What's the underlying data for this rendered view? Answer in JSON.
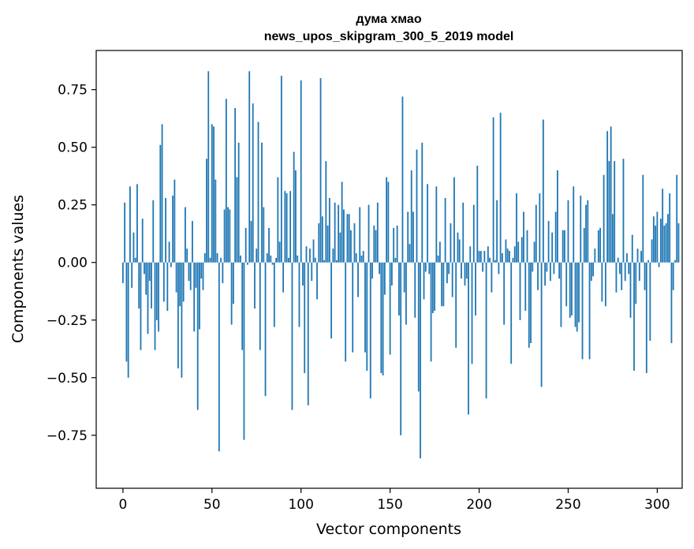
{
  "chart_data": {
    "type": "bar",
    "title_line1": "дума хмао",
    "title_line2": "news_upos_skipgram_300_5_2019 model",
    "xlabel": "Vector components",
    "ylabel": "Components values",
    "bar_color": "#1f77b4",
    "xlim": [
      -15,
      314
    ],
    "ylim": [
      -0.98,
      0.92
    ],
    "xticks": [
      0,
      50,
      100,
      150,
      200,
      250,
      300
    ],
    "xtick_labels": [
      "0",
      "50",
      "100",
      "150",
      "200",
      "250",
      "300"
    ],
    "yticks": [
      -0.75,
      -0.5,
      -0.25,
      0.0,
      0.25,
      0.5,
      0.75
    ],
    "ytick_labels": [
      "−0.75",
      "−0.50",
      "−0.25",
      "0.00",
      "0.25",
      "0.50",
      "0.75"
    ],
    "values": [
      -0.09,
      0.26,
      -0.43,
      -0.5,
      0.33,
      -0.11,
      0.13,
      0.02,
      0.34,
      -0.2,
      -0.38,
      0.19,
      -0.05,
      -0.14,
      -0.31,
      -0.08,
      -0.2,
      0.27,
      -0.38,
      -0.25,
      -0.3,
      0.51,
      0.6,
      -0.17,
      0.28,
      -0.21,
      0.09,
      -0.02,
      0.29,
      0.36,
      -0.13,
      -0.46,
      -0.19,
      -0.5,
      -0.17,
      0.24,
      0.06,
      -0.08,
      -0.12,
      0.18,
      -0.3,
      -0.11,
      -0.64,
      -0.29,
      -0.07,
      -0.12,
      0.04,
      0.45,
      0.83,
      0.02,
      0.6,
      0.59,
      0.36,
      0.04,
      -0.82,
      0.02,
      -0.09,
      0.23,
      0.71,
      0.24,
      0.23,
      -0.27,
      -0.18,
      0.67,
      0.37,
      0.52,
      0.03,
      -0.38,
      -0.77,
      0.15,
      -0.01,
      0.83,
      0.18,
      0.69,
      -0.2,
      0.06,
      0.61,
      -0.38,
      0.52,
      0.24,
      -0.58,
      0.04,
      0.15,
      0.03,
      -0.01,
      -0.28,
      0.02,
      0.37,
      0.09,
      0.81,
      -0.13,
      0.31,
      0.3,
      0.02,
      0.31,
      -0.64,
      0.48,
      0.4,
      0.03,
      -0.28,
      0.79,
      -0.1,
      -0.48,
      0.07,
      -0.62,
      0.06,
      -0.08,
      0.1,
      0.02,
      -0.16,
      0.17,
      0.8,
      0.2,
      0.01,
      0.44,
      0.16,
      0.28,
      -0.33,
      0.06,
      0.26,
      0.01,
      0.25,
      0.13,
      0.35,
      0.23,
      -0.43,
      0.21,
      0.21,
      0.14,
      -0.39,
      0.17,
      0.04,
      -0.15,
      0.24,
      0.03,
      0.05,
      -0.39,
      -0.47,
      0.25,
      -0.59,
      -0.07,
      0.16,
      0.14,
      0.26,
      -0.05,
      -0.48,
      -0.49,
      -0.14,
      0.37,
      0.35,
      -0.4,
      -0.1,
      0.15,
      0.02,
      0.16,
      -0.23,
      -0.75,
      0.72,
      -0.13,
      -0.27,
      0.22,
      0.08,
      0.4,
      0.22,
      -0.24,
      0.49,
      -0.56,
      -0.85,
      0.52,
      -0.16,
      -0.04,
      0.34,
      -0.05,
      -0.43,
      -0.22,
      -0.21,
      0.33,
      0.03,
      0.09,
      -0.19,
      -0.19,
      0.28,
      -0.09,
      -0.05,
      0.17,
      -0.15,
      0.37,
      -0.37,
      0.13,
      0.1,
      -0.07,
      0.26,
      -0.1,
      -0.07,
      -0.66,
      0.07,
      -0.44,
      0.25,
      -0.23,
      0.42,
      0.05,
      0.05,
      -0.04,
      0.05,
      -0.59,
      0.07,
      0.02,
      -0.13,
      0.63,
      0.01,
      0.27,
      -0.05,
      0.65,
      0.04,
      -0.27,
      0.1,
      0.06,
      0.05,
      -0.44,
      0.02,
      0.07,
      0.3,
      0.09,
      -0.25,
      0.11,
      0.22,
      -0.21,
      0.14,
      -0.37,
      -0.35,
      -0.04,
      0.09,
      0.25,
      -0.12,
      0.3,
      -0.54,
      0.62,
      -0.1,
      -0.04,
      0.18,
      -0.08,
      0.13,
      -0.05,
      0.22,
      0.4,
      -0.07,
      -0.28,
      0.14,
      0.14,
      -0.19,
      0.27,
      -0.24,
      -0.23,
      0.33,
      -0.28,
      -0.3,
      -0.26,
      0.29,
      -0.42,
      0.15,
      0.25,
      0.27,
      -0.42,
      -0.08,
      -0.06,
      0.06,
      0.0,
      0.14,
      0.15,
      -0.17,
      0.38,
      -0.19,
      0.57,
      0.44,
      0.59,
      0.21,
      0.44,
      -0.13,
      0.02,
      -0.05,
      -0.12,
      0.45,
      -0.08,
      0.04,
      -0.05,
      -0.24,
      0.12,
      -0.47,
      -0.18,
      0.06,
      -0.08,
      0.05,
      0.38,
      -0.12,
      -0.48,
      0.01,
      -0.34,
      0.1,
      0.2,
      0.16,
      0.22,
      -0.02,
      0.19,
      0.32,
      0.16,
      0.17,
      0.21,
      0.3,
      -0.35,
      -0.12,
      0.01,
      0.38,
      0.17
    ]
  }
}
